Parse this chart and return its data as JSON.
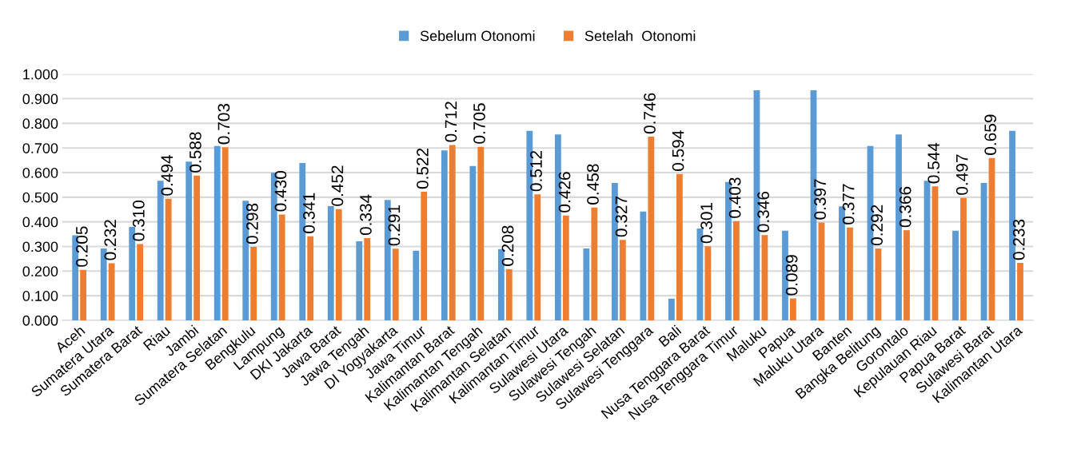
{
  "chart_data": {
    "type": "bar",
    "categories": [
      "Aceh",
      "Sumatera Utara",
      "Sumatera Barat",
      "Riau",
      "Jambi",
      "Sumatera Selatan",
      "Bengkulu",
      "Lampung",
      "DKI Jakarta",
      "Jawa Barat",
      "Jawa Tengah",
      "DI Yogyakarta",
      "Jawa Timur",
      "Kalimantan Barat",
      "Kalimantan Tengah",
      "Kalimantan Selatan",
      "Kalimantan Timur",
      "Sulawesi Utara",
      "Sulawesi Tengah",
      "Sulawesi Selatan",
      "Sulawesi Tenggara",
      "Bali",
      "Nusa Tenggara Barat",
      "Nusa Tenggara Timur",
      "Maluku",
      "Papua",
      "Maluku Utara",
      "Banten",
      "Bangka Belitung",
      "Gorontalo",
      "Kepulauan Riau",
      "Papua Barat",
      "Sulawesi Barat",
      "Kalimantan Utara"
    ],
    "series": [
      {
        "name": "Sebelum Otonomi",
        "color": "#5b9bd5",
        "values": [
          0.345,
          0.292,
          0.379,
          0.567,
          0.645,
          0.708,
          0.486,
          0.599,
          0.639,
          0.464,
          0.321,
          0.489,
          0.283,
          0.69,
          0.627,
          0.289,
          0.77,
          0.755,
          0.292,
          0.558,
          0.442,
          0.088,
          0.373,
          0.562,
          0.934,
          0.364,
          0.934,
          0.463,
          0.708,
          0.755,
          0.567,
          0.364,
          0.558,
          0.77
        ]
      },
      {
        "name": "Setelah  Otonomi",
        "color": "#ed7d31",
        "values": [
          0.205,
          0.232,
          0.31,
          0.494,
          0.588,
          0.703,
          0.298,
          0.43,
          0.341,
          0.452,
          0.334,
          0.291,
          0.522,
          0.712,
          0.705,
          0.208,
          0.512,
          0.426,
          0.458,
          0.327,
          0.746,
          0.594,
          0.301,
          0.403,
          0.346,
          0.089,
          0.397,
          0.377,
          0.292,
          0.366,
          0.544,
          0.497,
          0.659,
          0.233
        ],
        "value_labels": [
          "0.205",
          "0.232",
          "0.310",
          "0.494",
          "0.588",
          "0.703",
          "0.298",
          "0.430",
          "0.341",
          "0.452",
          "0.334",
          "0.291",
          "0.522",
          "0.712",
          "0.705",
          "0.208",
          "0.512",
          "0.426",
          "0.458",
          "0.327",
          "0.746",
          "0.594",
          "0.301",
          "0.403",
          "0.346",
          "0.089",
          "0.397",
          "0.377",
          "0.292",
          "0.366",
          "0.544",
          "0.497",
          "0.659",
          "0.233"
        ]
      }
    ],
    "ylim": [
      0,
      1
    ],
    "yticks": [
      {
        "value": 0,
        "label": "0.000"
      },
      {
        "value": 0.1,
        "label": "0.100"
      },
      {
        "value": 0.2,
        "label": "0.200"
      },
      {
        "value": 0.3,
        "label": "0.300"
      },
      {
        "value": 0.4,
        "label": "0.400"
      },
      {
        "value": 0.5,
        "label": "0.500"
      },
      {
        "value": 0.6,
        "label": "0.600"
      },
      {
        "value": 0.7,
        "label": "0.700"
      },
      {
        "value": 0.8,
        "label": "0.800"
      },
      {
        "value": 0.9,
        "label": "0.900"
      },
      {
        "value": 1,
        "label": "1.000"
      }
    ],
    "grid": "y",
    "legend": "top"
  }
}
